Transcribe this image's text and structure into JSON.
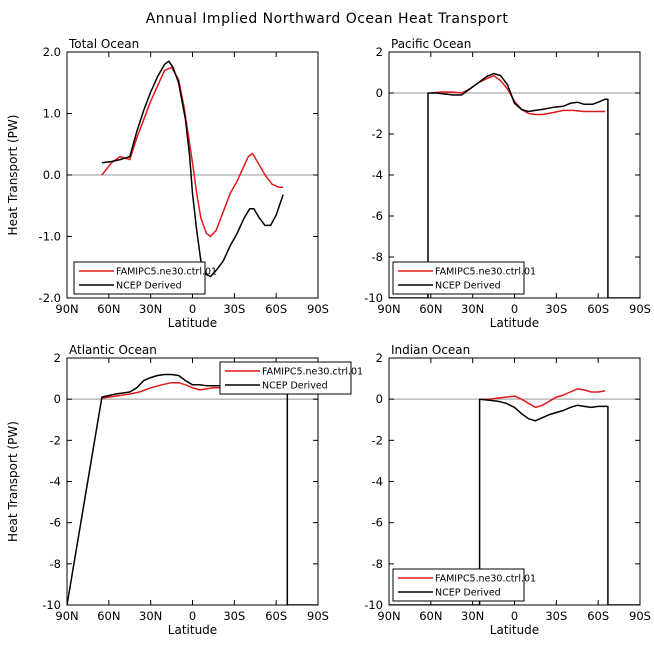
{
  "figure_title": "Annual Implied Northward Ocean Heat Transport",
  "colors": {
    "model": "#e31a1c",
    "obs": "#000000",
    "zero_line": "#999999"
  },
  "chart_data": [
    {
      "type": "line",
      "title": "Total Ocean",
      "xlabel": "Latitude",
      "ylabel": "Heat Transport (PW)",
      "xlim": [
        90,
        -90
      ],
      "xticks": [
        90,
        60,
        30,
        0,
        -30,
        -60,
        -90
      ],
      "xtick_labels": [
        "90N",
        "60N",
        "30N",
        "0",
        "30S",
        "60S",
        "90S"
      ],
      "ylim": [
        -2.0,
        2.0
      ],
      "yticks": [
        -2.0,
        -1.0,
        0.0,
        1.0,
        2.0
      ],
      "ytick_labels": [
        "-2.0",
        "-1.0",
        "0.0",
        "1.0",
        "2.0"
      ],
      "legend_position": "bottom-left",
      "series": [
        {
          "name": "FAMIPC5.ne30.ctrl.01",
          "color": "#e31a1c",
          "x": [
            65,
            58,
            52,
            45,
            40,
            35,
            30,
            25,
            20,
            15,
            10,
            6,
            2,
            0,
            -3,
            -6,
            -10,
            -13,
            -17,
            -22,
            -27,
            -32,
            -36,
            -40,
            -43,
            -47,
            -52,
            -57,
            -62,
            -65
          ],
          "y": [
            0.0,
            0.2,
            0.3,
            0.25,
            0.6,
            0.9,
            1.2,
            1.45,
            1.7,
            1.75,
            1.55,
            1.1,
            0.5,
            0.2,
            -0.3,
            -0.7,
            -0.95,
            -1.0,
            -0.9,
            -0.6,
            -0.3,
            -0.1,
            0.1,
            0.3,
            0.35,
            0.2,
            0.0,
            -0.15,
            -0.2,
            -0.2
          ]
        },
        {
          "name": "NCEP Derived",
          "color": "#000000",
          "x": [
            65,
            58,
            52,
            45,
            40,
            35,
            30,
            25,
            20,
            17,
            14,
            10,
            5,
            2,
            0,
            -3,
            -6,
            -10,
            -13,
            -17,
            -22,
            -27,
            -32,
            -37,
            -41,
            -44,
            -48,
            -52,
            -56,
            -60,
            -65
          ],
          "y": [
            0.2,
            0.22,
            0.25,
            0.3,
            0.7,
            1.05,
            1.35,
            1.6,
            1.8,
            1.85,
            1.75,
            1.5,
            0.9,
            0.3,
            -0.3,
            -0.9,
            -1.4,
            -1.62,
            -1.65,
            -1.55,
            -1.4,
            -1.15,
            -0.95,
            -0.7,
            -0.55,
            -0.55,
            -0.7,
            -0.82,
            -0.82,
            -0.65,
            -0.32
          ]
        }
      ]
    },
    {
      "type": "line",
      "title": "Pacific Ocean",
      "xlabel": "Latitude",
      "ylabel": "",
      "xlim": [
        90,
        -90
      ],
      "xticks": [
        90,
        60,
        30,
        0,
        -30,
        -60,
        -90
      ],
      "xtick_labels": [
        "90N",
        "60N",
        "30N",
        "0",
        "30S",
        "60S",
        "90S"
      ],
      "ylim": [
        -10,
        2
      ],
      "yticks": [
        -10,
        -8,
        -6,
        -4,
        -2,
        0,
        2
      ],
      "ytick_labels": [
        "-10",
        "-8",
        "-6",
        "-4",
        "-2",
        "0",
        "2"
      ],
      "legend_position": "bottom-left",
      "series": [
        {
          "name": "FAMIPC5.ne30.ctrl.01",
          "color": "#e31a1c",
          "x": [
            60,
            52,
            45,
            38,
            32,
            26,
            20,
            15,
            10,
            5,
            0,
            -5,
            -10,
            -15,
            -20,
            -28,
            -35,
            -42,
            -50,
            -58,
            -65
          ],
          "y": [
            0.0,
            0.05,
            0.05,
            0.0,
            0.2,
            0.5,
            0.7,
            0.85,
            0.6,
            0.2,
            -0.4,
            -0.8,
            -1.0,
            -1.05,
            -1.05,
            -0.95,
            -0.85,
            -0.85,
            -0.9,
            -0.9,
            -0.9
          ]
        },
        {
          "name": "NCEP Derived",
          "color": "#000000",
          "x": [
            90,
            62,
            62,
            56,
            50,
            44,
            38,
            32,
            26,
            20,
            15,
            10,
            5,
            0,
            -5,
            -10,
            -15,
            -20,
            -28,
            -35,
            -40,
            -45,
            -50,
            -56,
            -60,
            -65,
            -67,
            -67,
            -90
          ],
          "y": [
            -10,
            -10,
            0.0,
            0.0,
            -0.05,
            -0.1,
            -0.1,
            0.2,
            0.5,
            0.8,
            0.95,
            0.85,
            0.4,
            -0.5,
            -0.8,
            -0.9,
            -0.85,
            -0.8,
            -0.7,
            -0.65,
            -0.5,
            -0.45,
            -0.55,
            -0.55,
            -0.45,
            -0.3,
            -0.3,
            -10,
            -10
          ]
        }
      ]
    },
    {
      "type": "line",
      "title": "Atlantic Ocean",
      "xlabel": "Latitude",
      "ylabel": "Heat Transport (PW)",
      "xlim": [
        90,
        -90
      ],
      "xticks": [
        90,
        60,
        30,
        0,
        -30,
        -60,
        -90
      ],
      "xtick_labels": [
        "90N",
        "60N",
        "30N",
        "0",
        "30S",
        "60S",
        "90S"
      ],
      "ylim": [
        -10,
        2
      ],
      "yticks": [
        -10,
        -8,
        -6,
        -4,
        -2,
        0,
        2
      ],
      "ytick_labels": [
        "-10",
        "-8",
        "-6",
        "-4",
        "-2",
        "0",
        "2"
      ],
      "legend_position": "top-right",
      "series": [
        {
          "name": "FAMIPC5.ne30.ctrl.01",
          "color": "#e31a1c",
          "x": [
            65,
            55,
            45,
            38,
            30,
            22,
            15,
            10,
            5,
            0,
            -5,
            -10,
            -15,
            -20,
            -25,
            -30,
            -35,
            -40,
            -45,
            -50,
            -55,
            -60,
            -65
          ],
          "y": [
            0.05,
            0.15,
            0.25,
            0.35,
            0.55,
            0.7,
            0.8,
            0.8,
            0.7,
            0.55,
            0.45,
            0.5,
            0.55,
            0.55,
            0.55,
            0.6,
            0.6,
            0.6,
            0.65,
            0.55,
            0.45,
            0.4,
            0.4
          ]
        },
        {
          "name": "NCEP Derived",
          "color": "#000000",
          "x": [
            90,
            65,
            55,
            45,
            40,
            35,
            30,
            25,
            20,
            15,
            10,
            5,
            0,
            -5,
            -10,
            -15,
            -20,
            -30,
            -40,
            -45,
            -50,
            -55,
            -60,
            -65,
            -68,
            -68,
            -90
          ],
          "y": [
            -10,
            0.1,
            0.25,
            0.35,
            0.55,
            0.9,
            1.05,
            1.15,
            1.2,
            1.2,
            1.15,
            0.9,
            0.7,
            0.7,
            0.65,
            0.65,
            0.65,
            0.65,
            0.65,
            0.65,
            0.65,
            0.6,
            0.55,
            0.5,
            0.5,
            -10,
            -10
          ]
        }
      ]
    },
    {
      "type": "line",
      "title": "Indian Ocean",
      "xlabel": "Latitude",
      "ylabel": "",
      "xlim": [
        90,
        -90
      ],
      "xticks": [
        90,
        60,
        30,
        0,
        -30,
        -60,
        -90
      ],
      "xtick_labels": [
        "90N",
        "60N",
        "30N",
        "0",
        "30S",
        "60S",
        "90S"
      ],
      "ylim": [
        -10,
        2
      ],
      "yticks": [
        -10,
        -8,
        -6,
        -4,
        -2,
        0,
        2
      ],
      "ytick_labels": [
        "-10",
        "-8",
        "-6",
        "-4",
        "-2",
        "0",
        "2"
      ],
      "legend_position": "bottom-left",
      "series": [
        {
          "name": "FAMIPC5.ne30.ctrl.01",
          "color": "#e31a1c",
          "x": [
            25,
            18,
            12,
            6,
            0,
            -5,
            -10,
            -15,
            -20,
            -25,
            -30,
            -35,
            -40,
            -45,
            -50,
            -55,
            -60,
            -65
          ],
          "y": [
            0.0,
            0.0,
            0.05,
            0.1,
            0.15,
            0.0,
            -0.2,
            -0.4,
            -0.3,
            -0.1,
            0.1,
            0.2,
            0.35,
            0.5,
            0.45,
            0.35,
            0.35,
            0.4
          ]
        },
        {
          "name": "NCEP Derived",
          "color": "#000000",
          "x": [
            90,
            25,
            25,
            18,
            12,
            6,
            0,
            -5,
            -10,
            -15,
            -20,
            -25,
            -30,
            -35,
            -40,
            -45,
            -50,
            -55,
            -60,
            -65,
            -67,
            -67,
            -90
          ],
          "y": [
            -10,
            -10,
            0.0,
            -0.05,
            -0.1,
            -0.2,
            -0.4,
            -0.7,
            -0.95,
            -1.05,
            -0.9,
            -0.75,
            -0.65,
            -0.55,
            -0.4,
            -0.3,
            -0.35,
            -0.4,
            -0.35,
            -0.35,
            -0.35,
            -10,
            -10
          ]
        }
      ]
    }
  ]
}
